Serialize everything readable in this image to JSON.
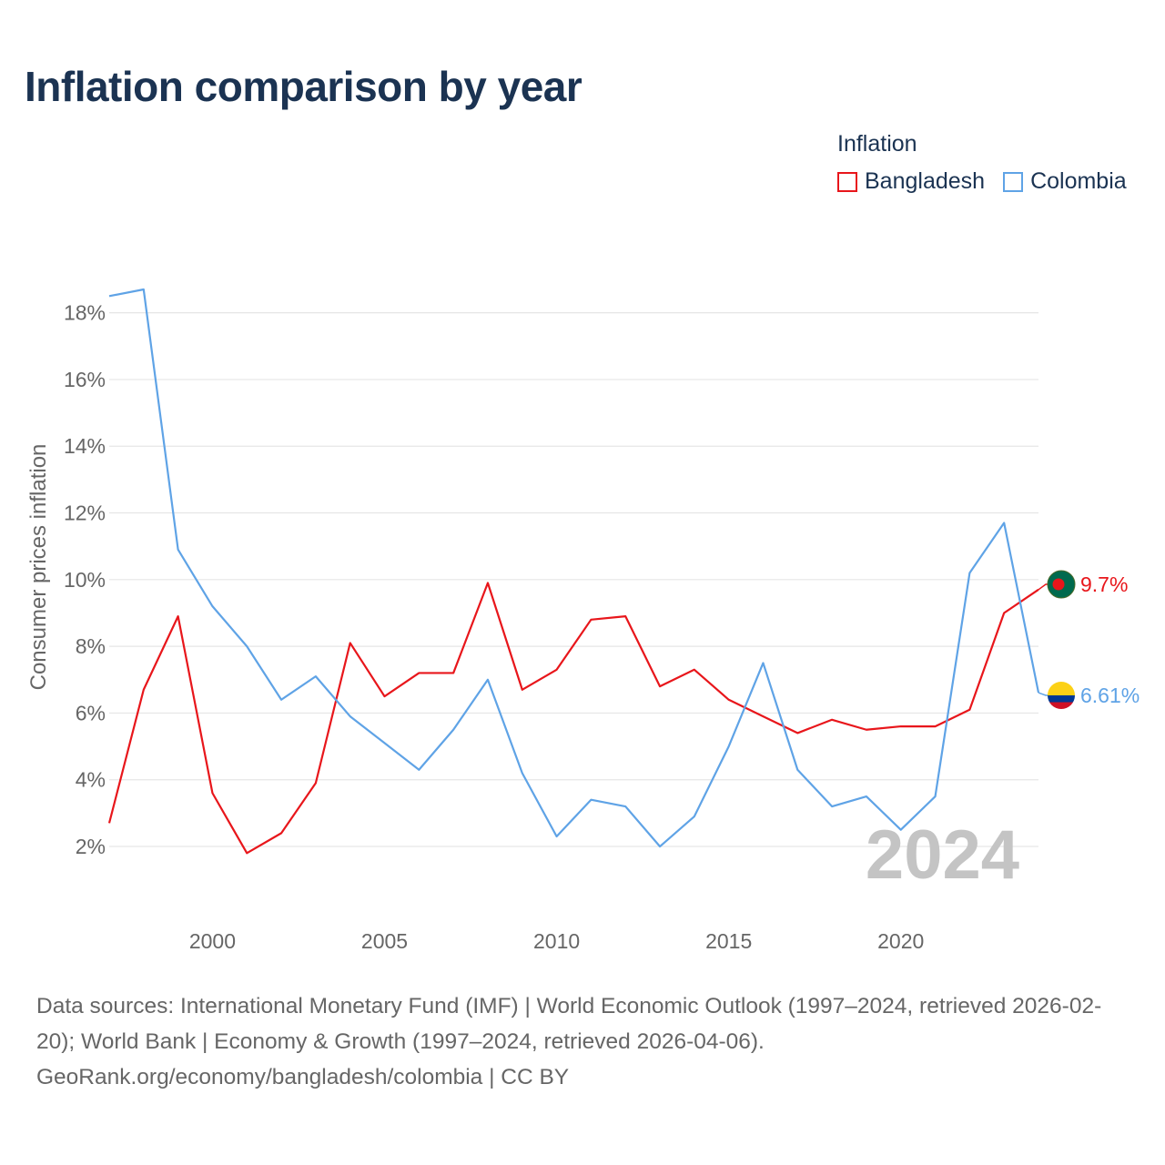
{
  "page": {
    "title": "Inflation comparison by year",
    "footer": {
      "sources": "Data sources: International Monetary Fund (IMF) | World Economic Outlook (1997–2024, retrieved 2026-02-20); World Bank | Economy & Growth (1997–2024, retrieved 2026-04-06).",
      "credit": "GeoRank.org/economy/bangladesh/colombia | CC BY"
    }
  },
  "chart_data": {
    "type": "line",
    "title": "Inflation comparison by year",
    "legend_title": "Inflation",
    "ylabel": "Consumer prices inflation",
    "xlabel": "",
    "year_label": "2024",
    "x": [
      1997,
      1998,
      1999,
      2000,
      2001,
      2002,
      2003,
      2004,
      2005,
      2006,
      2007,
      2008,
      2009,
      2010,
      2011,
      2012,
      2013,
      2014,
      2015,
      2016,
      2017,
      2018,
      2019,
      2020,
      2021,
      2022,
      2023,
      2024
    ],
    "xlim": [
      1997,
      2024
    ],
    "ylim": [
      0.5,
      19.6
    ],
    "x_ticks": [
      "2000",
      "2005",
      "2010",
      "2015",
      "2020"
    ],
    "y_ticks": [
      "2%",
      "4%",
      "6%",
      "8%",
      "10%",
      "12%",
      "14%",
      "16%",
      "18%"
    ],
    "grid": true,
    "series": [
      {
        "name": "Bangladesh",
        "color": "#e8161b",
        "end_label": "9.7%",
        "values": [
          2.7,
          6.7,
          8.9,
          3.6,
          1.8,
          2.4,
          3.9,
          8.1,
          6.5,
          7.2,
          7.2,
          9.9,
          6.7,
          7.3,
          8.8,
          8.9,
          6.8,
          7.3,
          6.4,
          5.9,
          5.4,
          5.8,
          5.5,
          5.6,
          5.6,
          6.1,
          9.0,
          9.7
        ]
      },
      {
        "name": "Colombia",
        "color": "#5fa3e6",
        "end_label": "6.61%",
        "values": [
          18.5,
          18.7,
          10.9,
          9.2,
          8.0,
          6.4,
          7.1,
          5.9,
          5.1,
          4.3,
          5.5,
          7.0,
          4.2,
          2.3,
          3.4,
          3.2,
          2.0,
          2.9,
          5.0,
          7.5,
          4.3,
          3.2,
          3.5,
          2.5,
          3.5,
          10.2,
          11.7,
          6.61
        ]
      }
    ]
  }
}
